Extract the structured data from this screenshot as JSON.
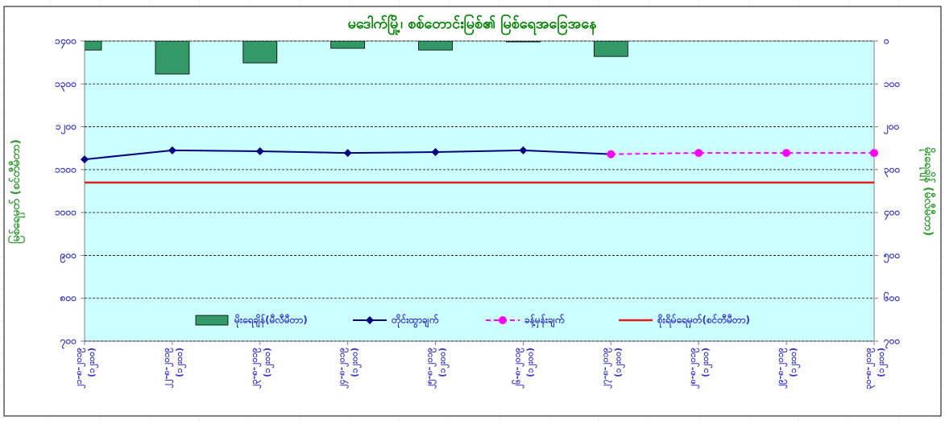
{
  "chart_data": {
    "type": "combo",
    "title": "မဒေါက်မြို့၊ စစ်တောင်းမြစ်၏ မြစ်ရေအခြေအနေ",
    "y_label": "မြစ်ရေမှတ် (စင်တီမီတာ)",
    "y2_label": "မိုးရေချိန် (မီလီမီတာ)",
    "categories": [
      [
        "၂၁-၈-၂၀၁၉",
        "(၁၂း၀၀)"
      ],
      [
        "၂၂-၈-၂၀၁၉",
        "(၁၂း၀၀)"
      ],
      [
        "၂၃-၈-၂၀၁၉",
        "(၁၂း၀၀)"
      ],
      [
        "၂၄-၈-၂၀၁၉",
        "(၁၂း၀၀)"
      ],
      [
        "၂၅-၈-၂၀၁၉",
        "(၁၂း၀၀)"
      ],
      [
        "၂၆-၈-၂၀၁၉",
        "(၁၂း၀၀)"
      ],
      [
        "၂၇-၈-၂၀၁၉",
        "(၁၂း၀၀)"
      ],
      [
        "၂၈-၈-၂၀၁၉",
        "(၁၂း၀၀)"
      ],
      [
        "၂၉-၈-၂၀၁၉",
        "(၁၂း၀၀)"
      ],
      [
        "၃၀-၈-၂၀၁၉",
        "(၁၂း၀၀)"
      ]
    ],
    "series": [
      {
        "name": "မိုးရေချိန်(မီလီမီတာ)",
        "type": "bar",
        "axis": "y2",
        "color": "#339966",
        "values": [
          21,
          77,
          51,
          17,
          21,
          2,
          36,
          0,
          0,
          0
        ]
      },
      {
        "name": "တိုင်းထွာချက်",
        "type": "line",
        "marker": "diamond",
        "dash": false,
        "color": "#000080",
        "values": [
          1124,
          1145,
          1143,
          1139,
          1141,
          1145,
          1136,
          null,
          null,
          null
        ]
      },
      {
        "name": "ခန့်မှန်းချက်",
        "type": "line",
        "marker": "circle",
        "dash": true,
        "color": "#ff00ff",
        "values": [
          null,
          null,
          null,
          null,
          null,
          null,
          1136,
          1139,
          1139,
          1139
        ]
      }
    ],
    "reference_lines": [
      {
        "name": "စိုးရိမ်ရေမှတ်(စင်တီမီတာ)",
        "color": "#e02020",
        "value": 1070
      }
    ],
    "ylim": [
      700,
      1400
    ],
    "yticks": [
      {
        "value": 700,
        "label": "၇၀၀"
      },
      {
        "value": 800,
        "label": "၈၀၀"
      },
      {
        "value": 900,
        "label": "၉၀၀"
      },
      {
        "value": 1000,
        "label": "၁၀၀၀"
      },
      {
        "value": 1100,
        "label": "၁၁၀၀"
      },
      {
        "value": 1200,
        "label": "၁၂၀၀"
      },
      {
        "value": 1300,
        "label": "၁၃၀၀"
      },
      {
        "value": 1400,
        "label": "၁၄၀၀"
      }
    ],
    "y2lim": [
      0,
      700
    ],
    "y2_reversed": true,
    "y2ticks": [
      {
        "value": 0,
        "label": "၀"
      },
      {
        "value": 100,
        "label": "၁၀၀"
      },
      {
        "value": 200,
        "label": "၂၀၀"
      },
      {
        "value": 300,
        "label": "၃၀၀"
      },
      {
        "value": 400,
        "label": "၄၀၀"
      },
      {
        "value": 500,
        "label": "၅၀၀"
      },
      {
        "value": 600,
        "label": "၆၀၀"
      },
      {
        "value": 700,
        "label": "၇၀၀"
      }
    ],
    "grid": true
  }
}
